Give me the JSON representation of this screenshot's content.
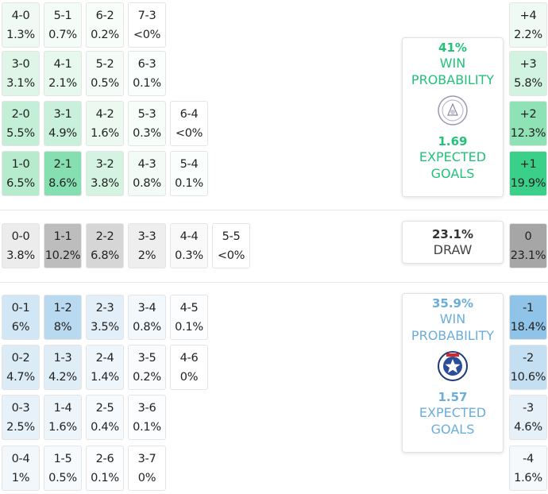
{
  "colors": {
    "home_accent": "#22c27a",
    "away_accent": "#6aaedc",
    "draw_text": "#333333"
  },
  "home_grid": [
    [
      {
        "score": "4-0",
        "prob": "1.3%",
        "bg": "#eefaf3"
      },
      {
        "score": "5-1",
        "prob": "0.7%",
        "bg": "#f3fcf7"
      },
      {
        "score": "6-2",
        "prob": "0.2%",
        "bg": "#f8fdfa"
      },
      {
        "score": "7-3",
        "prob": "<0%",
        "bg": "#ffffff"
      }
    ],
    [
      {
        "score": "3-0",
        "prob": "3.1%",
        "bg": "#def5e8"
      },
      {
        "score": "4-1",
        "prob": "2.1%",
        "bg": "#e7f8ee"
      },
      {
        "score": "5-2",
        "prob": "0.5%",
        "bg": "#f5fcf8"
      },
      {
        "score": "6-3",
        "prob": "0.1%",
        "bg": "#fafefc"
      }
    ],
    [
      {
        "score": "2-0",
        "prob": "5.5%",
        "bg": "#c3efd6"
      },
      {
        "score": "3-1",
        "prob": "4.9%",
        "bg": "#c9f0da"
      },
      {
        "score": "4-2",
        "prob": "1.6%",
        "bg": "#ebf9f1"
      },
      {
        "score": "5-3",
        "prob": "0.3%",
        "bg": "#f7fdf9"
      },
      {
        "score": "6-4",
        "prob": "<0%",
        "bg": "#ffffff"
      }
    ],
    [
      {
        "score": "1-0",
        "prob": "6.5%",
        "bg": "#b6ebcd"
      },
      {
        "score": "2-1",
        "prob": "8.6%",
        "bg": "#86dfb0"
      },
      {
        "score": "3-2",
        "prob": "3.8%",
        "bg": "#d4f3e1"
      },
      {
        "score": "4-3",
        "prob": "0.8%",
        "bg": "#f2fbf6"
      },
      {
        "score": "5-4",
        "prob": "0.1%",
        "bg": "#fafefc"
      }
    ]
  ],
  "draw_row": [
    {
      "score": "0-0",
      "prob": "3.8%",
      "bg": "#ececec"
    },
    {
      "score": "1-1",
      "prob": "10.2%",
      "bg": "#bdbdbd"
    },
    {
      "score": "2-2",
      "prob": "6.8%",
      "bg": "#d6d6d6"
    },
    {
      "score": "3-3",
      "prob": "2%",
      "bg": "#eeeeee"
    },
    {
      "score": "4-4",
      "prob": "0.3%",
      "bg": "#f9f9f9"
    },
    {
      "score": "5-5",
      "prob": "<0%",
      "bg": "#ffffff"
    }
  ],
  "away_grid": [
    [
      {
        "score": "0-1",
        "prob": "6%",
        "bg": "#d2e7f5"
      },
      {
        "score": "1-2",
        "prob": "8%",
        "bg": "#b8d9f0"
      },
      {
        "score": "2-3",
        "prob": "3.5%",
        "bg": "#e2eff8"
      },
      {
        "score": "3-4",
        "prob": "0.8%",
        "bg": "#f3f8fc"
      },
      {
        "score": "4-5",
        "prob": "0.1%",
        "bg": "#fbfdfe"
      }
    ],
    [
      {
        "score": "0-2",
        "prob": "4.7%",
        "bg": "#dcecf7"
      },
      {
        "score": "1-3",
        "prob": "4.2%",
        "bg": "#dfedf7"
      },
      {
        "score": "2-4",
        "prob": "1.4%",
        "bg": "#eef5fb"
      },
      {
        "score": "3-5",
        "prob": "0.2%",
        "bg": "#f9fbfd"
      },
      {
        "score": "4-6",
        "prob": "0%",
        "bg": "#ffffff"
      }
    ],
    [
      {
        "score": "0-3",
        "prob": "2.5%",
        "bg": "#e7f1f9"
      },
      {
        "score": "1-4",
        "prob": "1.6%",
        "bg": "#edf4fa"
      },
      {
        "score": "2-5",
        "prob": "0.4%",
        "bg": "#f7fafd"
      },
      {
        "score": "3-6",
        "prob": "0.1%",
        "bg": "#fbfdfe"
      }
    ],
    [
      {
        "score": "0-4",
        "prob": "1%",
        "bg": "#f1f7fb"
      },
      {
        "score": "1-5",
        "prob": "0.5%",
        "bg": "#f6fafd"
      },
      {
        "score": "2-6",
        "prob": "0.1%",
        "bg": "#fbfdfe"
      },
      {
        "score": "3-7",
        "prob": "0%",
        "bg": "#ffffff"
      }
    ]
  ],
  "goal_diff": [
    {
      "label": "+4",
      "prob": "2.2%",
      "bg": "#eefaf3",
      "fg": "#222222"
    },
    {
      "label": "+3",
      "prob": "5.8%",
      "bg": "#d3f3e1",
      "fg": "#222222"
    },
    {
      "label": "+2",
      "prob": "12.3%",
      "bg": "#8ee2b5",
      "fg": "#222222"
    },
    {
      "label": "+1",
      "prob": "19.9%",
      "bg": "#3ad08a",
      "fg": "#222222"
    },
    {
      "label": "0",
      "prob": "23.1%",
      "bg": "#a6a6a6",
      "fg": "#222222"
    },
    {
      "label": "-1",
      "prob": "18.4%",
      "bg": "#8fc3e8",
      "fg": "#222222"
    },
    {
      "label": "-2",
      "prob": "10.6%",
      "bg": "#c4dff2",
      "fg": "#222222"
    },
    {
      "label": "-3",
      "prob": "4.6%",
      "bg": "#e5f0f9",
      "fg": "#222222"
    },
    {
      "label": "-4",
      "prob": "1.6%",
      "bg": "#f5f9fc",
      "fg": "#222222"
    }
  ],
  "home_card": {
    "win_pct": "41%",
    "win_label": "WIN PROBABILITY",
    "xg": "1.69",
    "xg_label": "EXPECTED GOALS",
    "logo_icon": "team-crest-icon"
  },
  "draw_card": {
    "pct": "23.1%",
    "label": "DRAW"
  },
  "away_card": {
    "win_pct": "35.9%",
    "win_label": "WIN PROBABILITY",
    "xg": "1.57",
    "xg_label": "EXPECTED GOALS",
    "logo_icon": "al-raed-club-crest-icon"
  }
}
